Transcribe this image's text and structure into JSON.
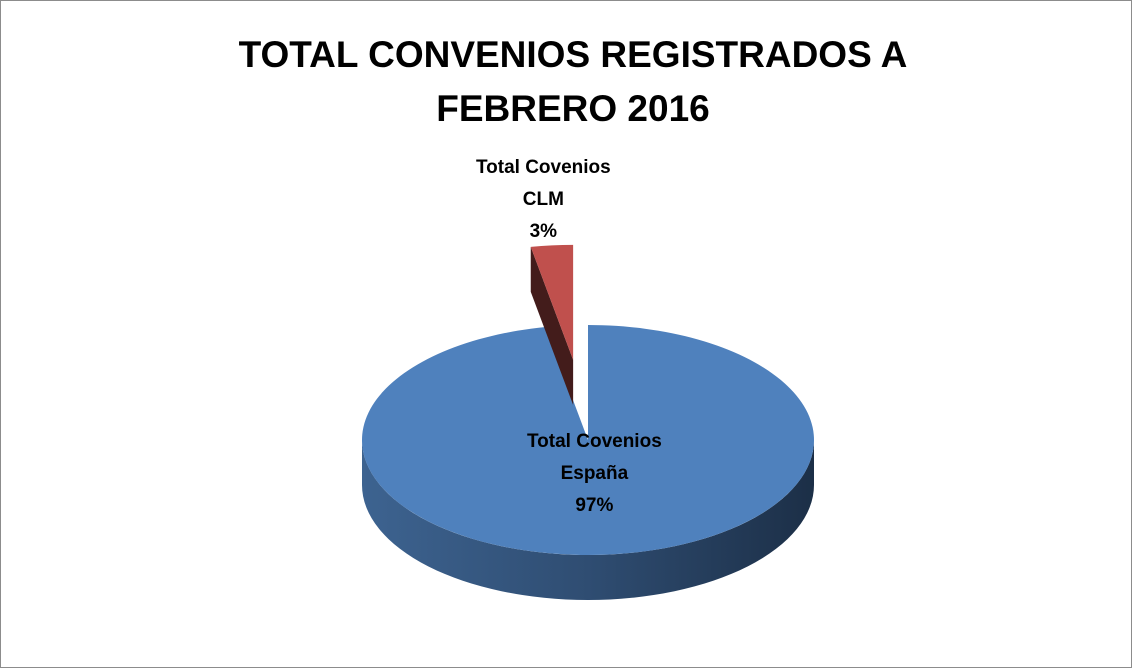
{
  "chart_data": {
    "type": "pie",
    "title": "TOTAL CONVENIOS REGISTRADOS A FEBRERO 2016",
    "categories": [
      "Total Covenios España",
      "Total Covenios CLM"
    ],
    "values": [
      97,
      3
    ],
    "value_labels": [
      "97%",
      "3%"
    ],
    "colors": [
      "#4f81bd",
      "#c0504d"
    ]
  }
}
